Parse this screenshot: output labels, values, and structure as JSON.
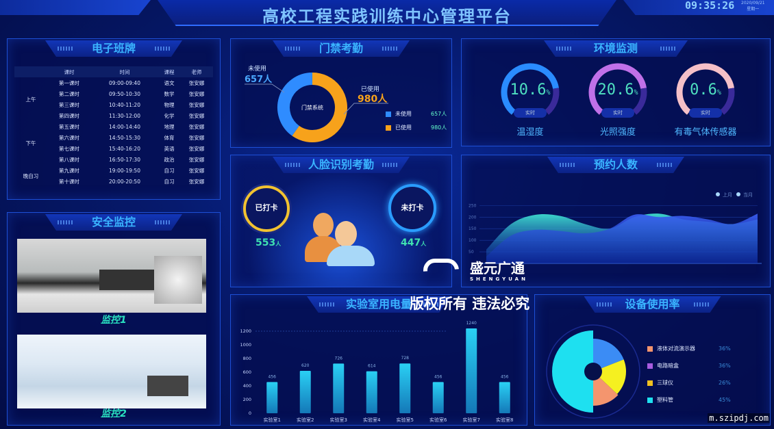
{
  "header": {
    "title": "高校工程实践训练中心管理平台",
    "time": "09:35:26",
    "date": "2020/09/21",
    "weekday": "星期一"
  },
  "schedule": {
    "title": "电子班牌",
    "columns": [
      "课时",
      "时间",
      "课程",
      "老师"
    ],
    "groups": [
      {
        "label": "上午",
        "rows": 4
      },
      {
        "label": "下午",
        "rows": 4
      },
      {
        "label": "晚自习",
        "rows": 2
      }
    ],
    "rows": [
      [
        "第一课时",
        "09:00-09:40",
        "语文",
        "张安娜"
      ],
      [
        "第二课时",
        "09:50-10:30",
        "数学",
        "张安娜"
      ],
      [
        "第三课时",
        "10:40-11:20",
        "物理",
        "张安娜"
      ],
      [
        "第四课时",
        "11:30-12:00",
        "化学",
        "张安娜"
      ],
      [
        "第五课时",
        "14:00-14:40",
        "地理",
        "张安娜"
      ],
      [
        "第六课时",
        "14:50-15:30",
        "体育",
        "张安娜"
      ],
      [
        "第七课时",
        "15:40-16:20",
        "英语",
        "张安娜"
      ],
      [
        "第八课时",
        "16:50-17:30",
        "政治",
        "张安娜"
      ],
      [
        "第九课时",
        "19:00-19:50",
        "自习",
        "张安娜"
      ],
      [
        "第十课时",
        "20:00-20:50",
        "自习",
        "张安娜"
      ]
    ]
  },
  "monitor": {
    "title": "安全监控",
    "feeds": [
      {
        "label": "监控1"
      },
      {
        "label": "监控2"
      }
    ]
  },
  "access": {
    "title": "门禁考勤",
    "center": "门禁系统",
    "unused": {
      "label": "未使用",
      "value": 657,
      "text": "657人",
      "color": "#2f8cff"
    },
    "used": {
      "label": "已使用",
      "value": 980,
      "text": "980人",
      "color": "#f7a21b"
    }
  },
  "face": {
    "title": "人脸识别考勤",
    "checked": {
      "label": "已打卡",
      "value": "553",
      "unit": "人",
      "color": "#f2c230"
    },
    "unchecked": {
      "label": "未打卡",
      "value": "447",
      "unit": "人",
      "color": "#2a9cff"
    }
  },
  "env": {
    "title": "环境监测",
    "tag": "实时",
    "gauges": [
      {
        "name": "温湿度",
        "value": "10.6",
        "unit": "%",
        "color": "#2a8cff"
      },
      {
        "name": "光照强度",
        "value": "20.6",
        "unit": "%",
        "color": "#c070e8"
      },
      {
        "name": "有毒气体传感器",
        "value": "0.6",
        "unit": "%",
        "color": "#f5c0c8"
      }
    ]
  },
  "reservation": {
    "title": "预约人数",
    "chart_data": {
      "type": "area",
      "yticks": [
        50,
        100,
        150,
        200,
        250
      ],
      "ylim": [
        0,
        260
      ],
      "legend_position": "top-right",
      "series": [
        {
          "name": "上月",
          "color": "#3fe0d0",
          "values": [
            60,
            170,
            210,
            205,
            170,
            150,
            200,
            215,
            190,
            180,
            170,
            190
          ]
        },
        {
          "name": "当月",
          "color": "#3a5cf0",
          "values": [
            30,
            120,
            145,
            140,
            130,
            150,
            210,
            200,
            205,
            190,
            170,
            215
          ]
        }
      ]
    }
  },
  "power": {
    "title": "实验室用电量",
    "chart_data": {
      "type": "bar",
      "categories": [
        "实验室1",
        "实验室2",
        "实验室3",
        "实验室4",
        "实验室5",
        "实验室6",
        "实验室7",
        "实验室8"
      ],
      "values": [
        456,
        620,
        726,
        614,
        728,
        456,
        1240,
        456
      ],
      "yticks": [
        0,
        200,
        400,
        600,
        800,
        1000,
        1200
      ],
      "ylim": [
        0,
        1300
      ],
      "color": "#22c4f0"
    }
  },
  "equipment": {
    "title": "设备使用率",
    "chart_data": {
      "type": "pie",
      "legend_position": "right",
      "items": [
        {
          "name": "液体对流演示器",
          "value": 36,
          "label": "36%",
          "color": "#f4956e"
        },
        {
          "name": "电路暗盒",
          "value": 36,
          "label": "36%",
          "color": "#a85ce0",
          "slice_color": "#3b8cf5"
        },
        {
          "name": "三球仪",
          "value": 26,
          "label": "26%",
          "color": "#f0c020",
          "slice_color": "#f5f020"
        },
        {
          "name": "塑料管",
          "value": 45,
          "label": "45%",
          "color": "#1ee0f0"
        }
      ]
    }
  },
  "watermarks": {
    "brand": "盛元广通",
    "brand_en": "SHENGYUAN",
    "copyright": "版权所有 违法必究",
    "site": "m.szipdj.com"
  }
}
